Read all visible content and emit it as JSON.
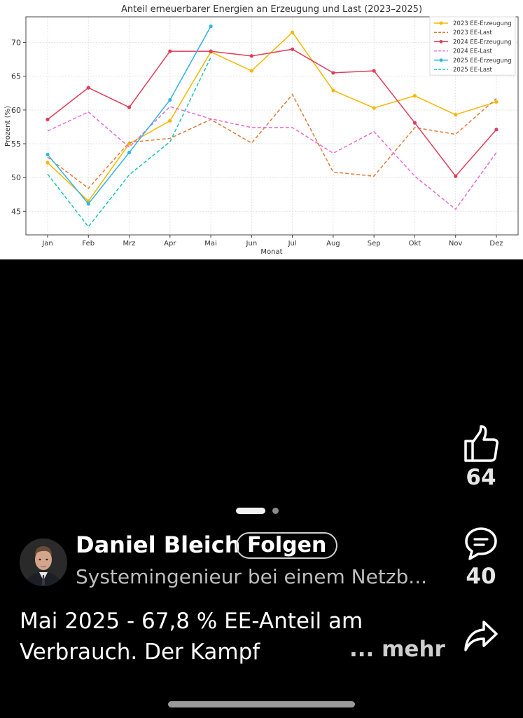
{
  "chart_data": {
    "type": "line",
    "title": "Anteil erneuerbarer Energien an Erzeugung und Last (2023–2025)",
    "xlabel": "Monat",
    "ylabel": "Prozent (%)",
    "categories": [
      "Jan",
      "Feb",
      "Mrz",
      "Apr",
      "Mai",
      "Jun",
      "Jul",
      "Aug",
      "Sep",
      "Okt",
      "Nov",
      "Dez"
    ],
    "yticks": [
      45,
      50,
      55,
      60,
      65,
      70
    ],
    "ylim": [
      41.5,
      73.8
    ],
    "grid": true,
    "legend_position": "top-right",
    "series": [
      {
        "name": "2023 EE-Erzeugung",
        "color": "#f5b700",
        "dash": false,
        "markers": true,
        "values": [
          52.2,
          46.5,
          55.0,
          58.4,
          68.6,
          65.8,
          71.5,
          62.9,
          60.3,
          62.1,
          59.3,
          61.2
        ]
      },
      {
        "name": "2023 EE-Last",
        "color": "#e07b39",
        "dash": true,
        "markers": false,
        "values": [
          53.0,
          48.4,
          55.2,
          55.8,
          58.6,
          55.1,
          62.3,
          50.8,
          50.2,
          57.4,
          56.4,
          61.7
        ]
      },
      {
        "name": "2024 EE-Erzeugung",
        "color": "#e03c5a",
        "dash": false,
        "markers": true,
        "values": [
          58.6,
          63.3,
          60.4,
          68.7,
          68.7,
          68.0,
          69.0,
          65.5,
          65.8,
          58.1,
          50.2,
          57.1
        ]
      },
      {
        "name": "2024 EE-Last",
        "color": "#e86ad6",
        "dash": true,
        "markers": false,
        "values": [
          56.9,
          59.7,
          54.5,
          60.5,
          58.7,
          57.4,
          57.4,
          53.6,
          56.8,
          50.2,
          45.3,
          53.7
        ]
      },
      {
        "name": "2025 EE-Erzeugung",
        "color": "#2fb4e8",
        "dash": false,
        "markers": true,
        "values": [
          53.4,
          46.1,
          53.7,
          61.5,
          72.4,
          null,
          null,
          null,
          null,
          null,
          null,
          null
        ]
      },
      {
        "name": "2025 EE-Last",
        "color": "#19c2b5",
        "dash": true,
        "markers": false,
        "values": [
          50.5,
          42.7,
          50.4,
          55.3,
          67.8,
          null,
          null,
          null,
          null,
          null,
          null,
          null
        ]
      }
    ]
  },
  "pager": {
    "count": 2,
    "active": 0
  },
  "actions": {
    "like": {
      "icon": "thumbs-up-icon",
      "count": "64"
    },
    "comment": {
      "icon": "comment-icon",
      "count": "40"
    },
    "share": {
      "icon": "share-icon"
    }
  },
  "author": {
    "name": "Daniel Bleich",
    "follow_label": "Folgen",
    "headline": "Systemingenieur bei einem Netzb..."
  },
  "post": {
    "line1": "Mai 2025 - 67,8 % EE-Anteil am",
    "line2": "Verbrauch. Der Kampf",
    "more_label": "... mehr"
  },
  "colors": {
    "background": "#000000",
    "text": "#ffffff",
    "muted": "#bdbdbd"
  }
}
